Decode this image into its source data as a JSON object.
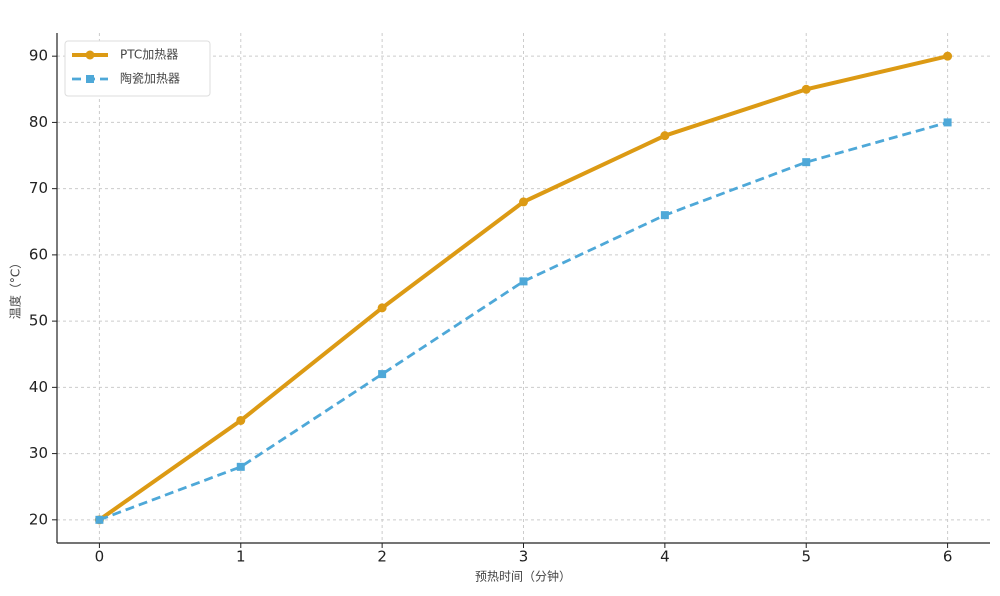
{
  "chart_data": {
    "type": "line",
    "x": [
      0,
      1,
      2,
      3,
      4,
      5,
      6
    ],
    "series": [
      {
        "name": "PTC加热器",
        "color": "#dc9a14",
        "dash": "solid",
        "marker": "circle",
        "values": [
          20,
          35,
          52,
          68,
          78,
          85,
          90
        ]
      },
      {
        "name": "陶瓷加热器",
        "color": "#4ea8d8",
        "dash": "dashed",
        "marker": "square",
        "values": [
          20,
          28,
          42,
          56,
          66,
          74,
          80
        ]
      }
    ],
    "xlabel": "预热时间（分钟）",
    "ylabel": "温度（°C）",
    "xlim": [
      -0.3,
      6.3
    ],
    "ylim": [
      16.5,
      93.5
    ],
    "xticks": [
      0,
      1,
      2,
      3,
      4,
      5,
      6
    ],
    "yticks": [
      20,
      30,
      40,
      50,
      60,
      70,
      80,
      90
    ],
    "grid": true,
    "legend": "upper left"
  }
}
